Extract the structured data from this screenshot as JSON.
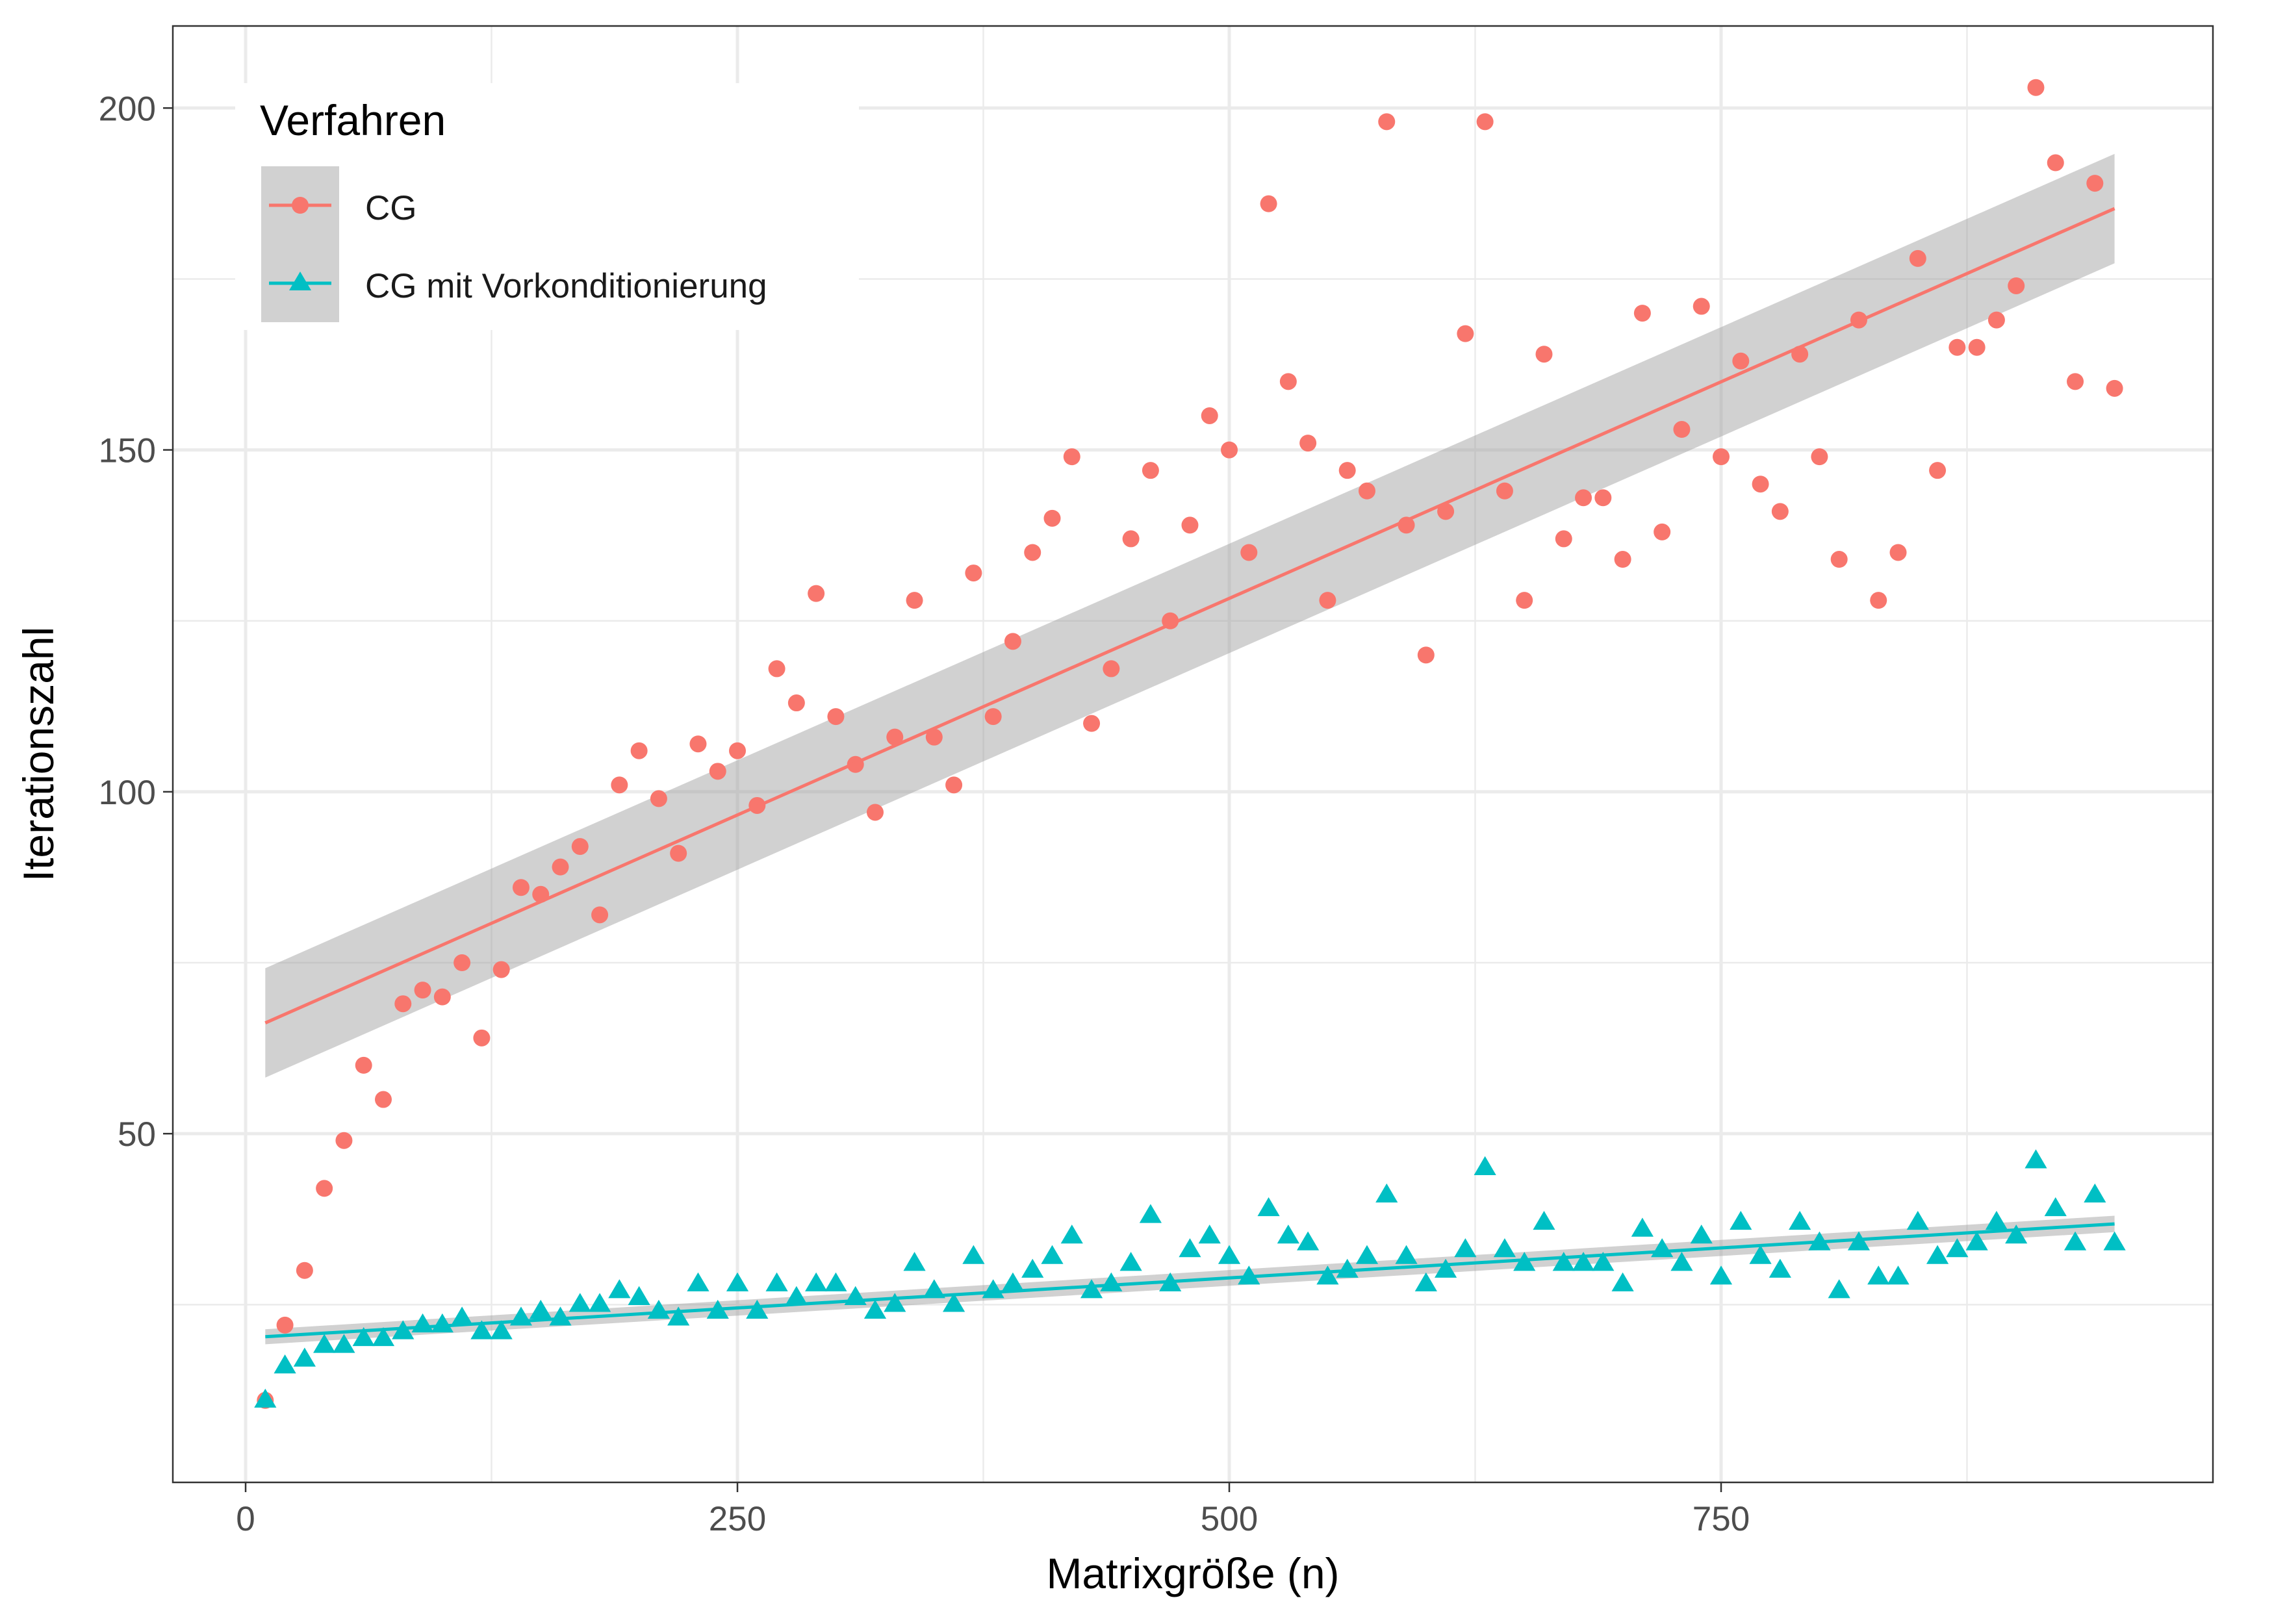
{
  "chart_data": {
    "type": "scatter",
    "xlabel": "Matrixgröße (n)",
    "ylabel": "Iterationszahl",
    "xlim": [
      -37,
      1000
    ],
    "ylim": [
      -1,
      212
    ],
    "x_ticks": [
      0,
      250,
      500,
      750
    ],
    "x_tick_labels": [
      "0",
      "250",
      "500",
      "750"
    ],
    "y_ticks": [
      50,
      100,
      150,
      200
    ],
    "y_tick_labels": [
      "50",
      "100",
      "150",
      "200"
    ],
    "grid": true,
    "legend_position": "top-left",
    "legend_title": "Verfahren",
    "series": [
      {
        "name": "CG",
        "marker": "circle",
        "color": "#F8766D",
        "x": [
          10,
          20,
          30,
          40,
          50,
          60,
          70,
          80,
          90,
          100,
          110,
          120,
          130,
          140,
          150,
          160,
          170,
          180,
          190,
          200,
          210,
          220,
          230,
          240,
          250,
          260,
          270,
          280,
          290,
          300,
          310,
          320,
          330,
          340,
          350,
          360,
          370,
          380,
          390,
          400,
          410,
          420,
          430,
          440,
          450,
          460,
          470,
          480,
          490,
          500,
          510,
          520,
          530,
          540,
          550,
          560,
          570,
          580,
          590,
          600,
          610,
          620,
          630,
          640,
          650,
          660,
          670,
          680,
          690,
          700,
          710,
          720,
          730,
          740,
          750,
          760,
          770,
          780,
          790,
          800,
          810,
          820,
          830,
          840,
          850,
          860,
          870,
          880,
          890,
          900,
          910,
          920,
          930,
          940,
          950
        ],
        "y": [
          11,
          22,
          30,
          42,
          49,
          60,
          55,
          69,
          71,
          70,
          75,
          64,
          74,
          86,
          85,
          89,
          92,
          82,
          101,
          106,
          99,
          91,
          107,
          103,
          106,
          98,
          118,
          113,
          129,
          111,
          104,
          97,
          108,
          128,
          108,
          101,
          132,
          111,
          122,
          135,
          140,
          149,
          110,
          118,
          137,
          147,
          125,
          139,
          155,
          150,
          135,
          186,
          160,
          151,
          128,
          147,
          144,
          198,
          139,
          120,
          141,
          167,
          198,
          144,
          128,
          164,
          137,
          143,
          143,
          134,
          170,
          138,
          153,
          171,
          149,
          163,
          145,
          141,
          164,
          149,
          134,
          169,
          128,
          135,
          178,
          147,
          165,
          165,
          169,
          174,
          203,
          192,
          160,
          189,
          159
        ],
        "fit": {
          "x": [
            10,
            950
          ],
          "y": [
            66.2,
            185.3
          ],
          "ci_low": [
            58.2,
            177.3
          ],
          "ci_high": [
            74.2,
            193.3
          ]
        }
      },
      {
        "name": "CG mit Vorkonditionierung",
        "marker": "triangle",
        "color": "#00BFC4",
        "x": [
          10,
          20,
          30,
          40,
          50,
          60,
          70,
          80,
          90,
          100,
          110,
          120,
          130,
          140,
          150,
          160,
          170,
          180,
          190,
          200,
          210,
          220,
          230,
          240,
          250,
          260,
          270,
          280,
          290,
          300,
          310,
          320,
          330,
          340,
          350,
          360,
          370,
          380,
          390,
          400,
          410,
          420,
          430,
          440,
          450,
          460,
          470,
          480,
          490,
          500,
          510,
          520,
          530,
          540,
          550,
          560,
          570,
          580,
          590,
          600,
          610,
          620,
          630,
          640,
          650,
          660,
          670,
          680,
          690,
          700,
          710,
          720,
          730,
          740,
          750,
          760,
          770,
          780,
          790,
          800,
          810,
          820,
          830,
          840,
          850,
          860,
          870,
          880,
          890,
          900,
          910,
          920,
          930,
          940,
          950
        ],
        "y": [
          11,
          16,
          17,
          19,
          19,
          20,
          20,
          21,
          22,
          22,
          23,
          21,
          21,
          23,
          24,
          23,
          25,
          25,
          27,
          26,
          24,
          23,
          28,
          24,
          28,
          24,
          28,
          26,
          28,
          28,
          26,
          24,
          25,
          31,
          27,
          25,
          32,
          27,
          28,
          30,
          32,
          35,
          27,
          28,
          31,
          38,
          28,
          33,
          35,
          32,
          29,
          39,
          35,
          34,
          29,
          30,
          32,
          41,
          32,
          28,
          30,
          33,
          45,
          33,
          31,
          37,
          31,
          31,
          31,
          28,
          36,
          33,
          31,
          35,
          29,
          37,
          32,
          30,
          37,
          34,
          27,
          34,
          29,
          29,
          37,
          32,
          33,
          34,
          37,
          35,
          46,
          39,
          34,
          41,
          34
        ],
        "fit": {
          "x": [
            10,
            950
          ],
          "y": [
            20.3,
            36.8
          ],
          "ci_low": [
            19.2,
            35.6
          ],
          "ci_high": [
            21.4,
            38.0
          ]
        }
      }
    ]
  }
}
